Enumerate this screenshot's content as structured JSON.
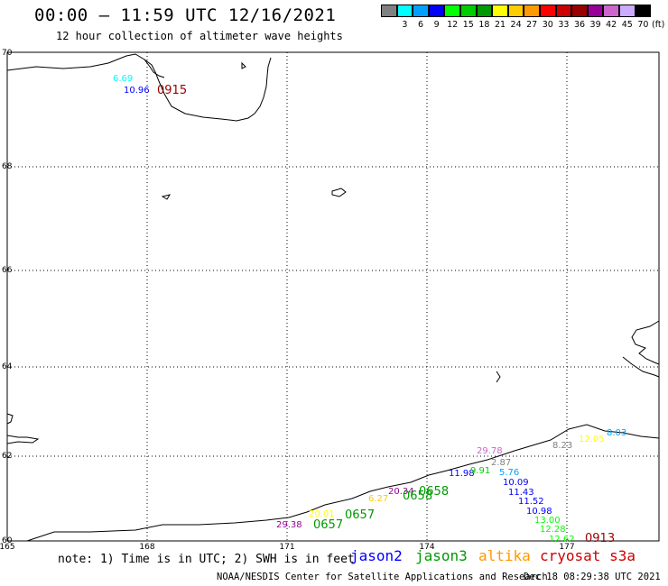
{
  "header": {
    "title": "00:00 – 11:59 UTC 12/16/2021",
    "subtitle": "12 hour collection of altimeter wave heights"
  },
  "legend": {
    "unit": "(ft)",
    "swatches": [
      {
        "label": "",
        "color": "#808080"
      },
      {
        "label": "3",
        "color": "#00ffff"
      },
      {
        "label": "6",
        "color": "#00a0ff"
      },
      {
        "label": "9",
        "color": "#0000ff"
      },
      {
        "label": "12",
        "color": "#00ff00"
      },
      {
        "label": "15",
        "color": "#00cc00"
      },
      {
        "label": "18",
        "color": "#009900"
      },
      {
        "label": "21",
        "color": "#ffff00"
      },
      {
        "label": "24",
        "color": "#ffcc00"
      },
      {
        "label": "27",
        "color": "#ff9900"
      },
      {
        "label": "30",
        "color": "#ff0000"
      },
      {
        "label": "33",
        "color": "#cc0000"
      },
      {
        "label": "36",
        "color": "#990000"
      },
      {
        "label": "39",
        "color": "#990099"
      },
      {
        "label": "42",
        "color": "#cc66cc"
      },
      {
        "label": "45",
        "color": "#ccaaff"
      },
      {
        "label": "70",
        "color": "#000000"
      }
    ]
  },
  "axes": {
    "lat_labels": [
      "70",
      "68",
      "66",
      "64",
      "62",
      "60"
    ],
    "lon_labels": [
      "165",
      "168",
      "171",
      "174",
      "177"
    ]
  },
  "observations": [
    {
      "text": "6.69",
      "color": "#00ffff"
    },
    {
      "text": "10.96",
      "color": "#0000ff"
    },
    {
      "text": "0915",
      "color": "#990000"
    },
    {
      "text": "29.38",
      "color": "#990099"
    },
    {
      "text": "20.01",
      "color": "#ffff00"
    },
    {
      "text": "0657",
      "color": "#009900"
    },
    {
      "text": "0657",
      "color": "#009900"
    },
    {
      "text": "6.27",
      "color": "#ffcc00"
    },
    {
      "text": "20.34",
      "color": "#990099"
    },
    {
      "text": "0658",
      "color": "#009900"
    },
    {
      "text": "0658",
      "color": "#009900"
    },
    {
      "text": "11.98",
      "color": "#0000ff"
    },
    {
      "text": "9.91",
      "color": "#00cc00"
    },
    {
      "text": "29.78",
      "color": "#cc66cc"
    },
    {
      "text": "2.87",
      "color": "#808080"
    },
    {
      "text": "5.76",
      "color": "#00a0ff"
    },
    {
      "text": "10.09",
      "color": "#0000ff"
    },
    {
      "text": "11.43",
      "color": "#0000ff"
    },
    {
      "text": "11.52",
      "color": "#0000ff"
    },
    {
      "text": "10.98",
      "color": "#0000ff"
    },
    {
      "text": "13.00",
      "color": "#00ff00"
    },
    {
      "text": "12.28",
      "color": "#00ff00"
    },
    {
      "text": "12.62",
      "color": "#00ff00"
    },
    {
      "text": "0913",
      "color": "#990000"
    },
    {
      "text": "8.23",
      "color": "#808080"
    },
    {
      "text": "12.05",
      "color": "#ffff00"
    },
    {
      "text": "8.03",
      "color": "#00a0ff"
    }
  ],
  "footer": {
    "note": "note: 1) Time is in UTC; 2) SWH is in feet",
    "satellites": [
      {
        "name": "jason2",
        "color": "#0000ff"
      },
      {
        "name": "jason3",
        "color": "#009900"
      },
      {
        "name": "altika",
        "color": "#ff9900"
      },
      {
        "name": "cryosat s3a",
        "color": "#cc0000"
      }
    ],
    "credit": "NOAA/NESDIS Center for Satellite Applications and Research",
    "timestamp": "Dec 18 08:29:38 UTC 2021"
  }
}
